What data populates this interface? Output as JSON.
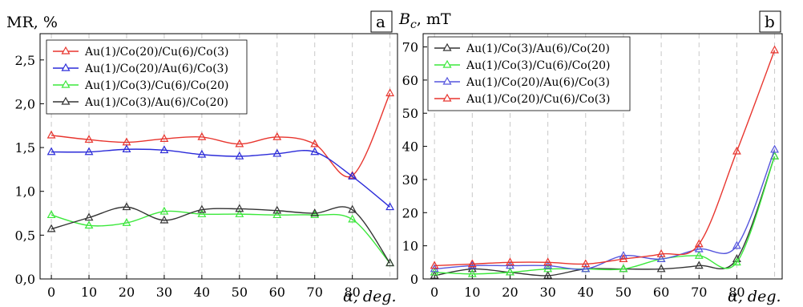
{
  "chart_data": [
    {
      "type": "line",
      "panel_label": "a",
      "ylabel": "MR, %",
      "xlabel": "α, deg.",
      "x": [
        0,
        10,
        20,
        30,
        40,
        50,
        60,
        70,
        80,
        90
      ],
      "x_ticks": [
        "0",
        "10",
        "20",
        "30",
        "40",
        "50",
        "60",
        "70",
        "80"
      ],
      "y_ticks": [
        "0,0",
        "0,5",
        "1,0",
        "1,5",
        "2,0",
        "2,5"
      ],
      "ylim": [
        0,
        2.8
      ],
      "xlim": [
        -3,
        92
      ],
      "grid": "vertical dashed",
      "legend_position": "top-left",
      "series": [
        {
          "name": "Au(1)/Co(20)/Cu(6)/Co(3)",
          "color": "#e8352e",
          "values": [
            1.64,
            1.59,
            1.56,
            1.6,
            1.62,
            1.54,
            1.62,
            1.54,
            1.18,
            2.12
          ]
        },
        {
          "name": "Au(1)/Co(20)/Au(6)/Co(3)",
          "color": "#2b2bd9",
          "values": [
            1.45,
            1.45,
            1.48,
            1.47,
            1.42,
            1.4,
            1.43,
            1.45,
            1.17,
            0.82
          ]
        },
        {
          "name": "Au(1)/Co(3)/Cu(6)/Co(20)",
          "color": "#3be83b",
          "values": [
            0.73,
            0.61,
            0.64,
            0.77,
            0.74,
            0.74,
            0.73,
            0.73,
            0.68,
            0.18
          ]
        },
        {
          "name": "Au(1)/Co(3)/Au(6)/Co(20)",
          "color": "#333333",
          "values": [
            0.57,
            0.7,
            0.82,
            0.67,
            0.79,
            0.8,
            0.78,
            0.75,
            0.79,
            0.18
          ]
        }
      ]
    },
    {
      "type": "line",
      "panel_label": "b",
      "ylabel": "B_c, mT",
      "xlabel": "α, deg.",
      "x": [
        0,
        10,
        20,
        30,
        40,
        50,
        60,
        70,
        80,
        90
      ],
      "x_ticks": [
        "0",
        "10",
        "20",
        "30",
        "40",
        "50",
        "60",
        "70",
        "80"
      ],
      "y_ticks": [
        "0",
        "10",
        "20",
        "30",
        "40",
        "50",
        "60",
        "70"
      ],
      "ylim": [
        0,
        74
      ],
      "xlim": [
        -3,
        92
      ],
      "grid": "vertical dashed",
      "legend_position": "top-left",
      "series": [
        {
          "name": "Au(1)/Co(3)/Au(6)/Co(20)",
          "color": "#333333",
          "values": [
            1,
            3,
            2,
            1,
            3,
            3,
            3,
            4,
            6,
            37
          ]
        },
        {
          "name": "Au(1)/Co(3)/Cu(6)/Co(20)",
          "color": "#3be83b",
          "values": [
            2,
            1.5,
            2,
            3,
            3,
            3,
            6,
            7,
            5,
            37
          ]
        },
        {
          "name": "Au(1)/Co(20)/Au(6)/Co(3)",
          "color": "#5555dd",
          "values": [
            3,
            4,
            4,
            4,
            3,
            7,
            6,
            9,
            10,
            39
          ]
        },
        {
          "name": "Au(1)/Co(20)/Cu(6)/Co(3)",
          "color": "#e8352e",
          "values": [
            4,
            4.5,
            5,
            5,
            4.5,
            6,
            7.5,
            10.5,
            38.5,
            69
          ]
        }
      ]
    }
  ]
}
